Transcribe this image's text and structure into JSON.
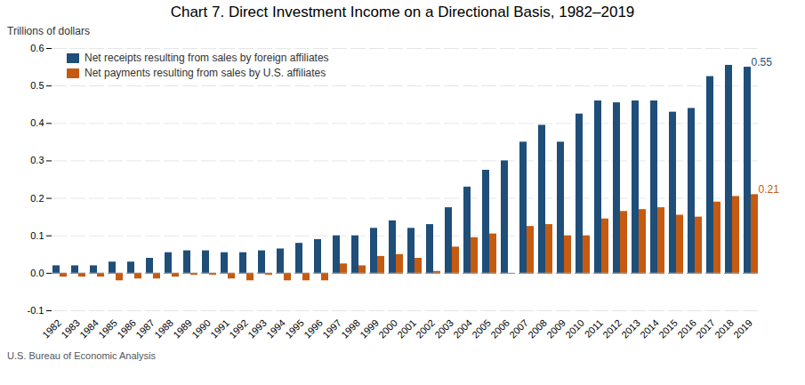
{
  "chart_data": {
    "type": "bar",
    "title": "Chart 7. Direct Investment Income on a Directional Basis, 1982–2019",
    "ylabel": "Trillions of dollars",
    "footnote": "U.S. Bureau of Economic Analysis",
    "categories": [
      "1982",
      "1983",
      "1984",
      "1985",
      "1986",
      "1987",
      "1988",
      "1989",
      "1990",
      "1991",
      "1992",
      "1993",
      "1994",
      "1995",
      "1996",
      "1997",
      "1998",
      "1999",
      "2000",
      "2001",
      "2002",
      "2003",
      "2004",
      "2005",
      "2006",
      "2007",
      "2008",
      "2009",
      "2010",
      "2011",
      "2012",
      "2013",
      "2014",
      "2015",
      "2016",
      "2017",
      "2018",
      "2019"
    ],
    "series": [
      {
        "name": "Net receipts resulting from sales by foreign affiliates",
        "color": "#1F4E79",
        "values": [
          0.02,
          0.02,
          0.02,
          0.03,
          0.03,
          0.04,
          0.055,
          0.06,
          0.06,
          0.055,
          0.055,
          0.06,
          0.065,
          0.08,
          0.09,
          0.1,
          0.1,
          0.12,
          0.14,
          0.12,
          0.13,
          0.175,
          0.23,
          0.275,
          0.3,
          0.35,
          0.395,
          0.35,
          0.425,
          0.46,
          0.455,
          0.46,
          0.46,
          0.43,
          0.44,
          0.525,
          0.555,
          0.55
        ]
      },
      {
        "name": "Net payments resulting from sales by U.S. affiliates",
        "color": "#C55A11",
        "values": [
          -0.01,
          -0.01,
          -0.01,
          -0.02,
          -0.015,
          -0.015,
          -0.01,
          -0.005,
          -0.005,
          -0.015,
          -0.02,
          -0.005,
          -0.02,
          -0.02,
          -0.02,
          0.025,
          0.02,
          0.045,
          0.05,
          0.04,
          0.005,
          0.07,
          0.095,
          0.105,
          0.0,
          0.125,
          0.13,
          0.1,
          0.1,
          0.145,
          0.165,
          0.17,
          0.175,
          0.155,
          0.15,
          0.19,
          0.205,
          0.21
        ]
      }
    ],
    "annotations": [
      {
        "text": "0.55",
        "category": "2019",
        "series": "Net receipts resulting from sales by foreign affiliates"
      },
      {
        "text": "0.21",
        "category": "2019",
        "series": "Net payments resulting from sales by U.S. affiliates"
      }
    ],
    "ylim": [
      -0.1,
      0.6
    ],
    "yticks": [
      -0.1,
      {
        "value": 0,
        "label": "0.0"
      },
      0.1,
      0.2,
      0.3,
      0.4,
      0.5,
      0.6
    ],
    "grid": true,
    "legend": "upper left"
  }
}
